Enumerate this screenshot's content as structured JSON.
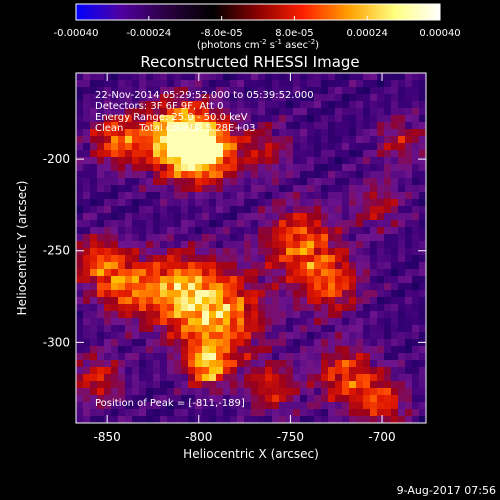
{
  "colorbar": {
    "tick_labels": [
      "-0.00040",
      "-0.00024",
      "-8.0e-05",
      "8.0e-05",
      "0.00024",
      "0.00040"
    ],
    "tick_values": [
      -0.0004,
      -0.00024,
      -8e-05,
      8e-05,
      0.00024,
      0.0004
    ],
    "min": -0.0004,
    "max": 0.0004,
    "units_text": "(photons cm",
    "units_exp1": "-2",
    "units_mid": " s",
    "units_exp2": "-1",
    "units_mid2": " asec",
    "units_exp3": "-2",
    "units_close": ")",
    "colors": [
      "#0000ff",
      "#5000a0",
      "#2a0040",
      "#000000",
      "#8a0000",
      "#ff2000",
      "#ffa000",
      "#ffff80",
      "#ffffff"
    ]
  },
  "annotations": {
    "line1": "22-Nov-2014 05:29:52.000 to 05:39:52.000",
    "line2": "Detectors: 3F 6F 9F, Att 0",
    "line3": "Energy Range: 25.0 - 50.0 keV",
    "line4": "Clean     Total counts: 5.28E+03",
    "peak_text": "Position of Peak = [-811,-189]"
  },
  "footer": {
    "date": "9-Aug-2017 07:56"
  },
  "chart_data": {
    "type": "heatmap",
    "title": "Reconstructed RHESSI Image",
    "xlabel": "Heliocentric X (arcsec)",
    "ylabel": "Heliocentric Y (arcsec)",
    "xlim": [
      -867,
      -676
    ],
    "ylim": [
      -344,
      -153
    ],
    "x_ticks": [
      -850,
      -800,
      -750,
      -700
    ],
    "x_tick_labels": [
      "-850",
      "-800",
      "-750",
      "-700"
    ],
    "y_ticks": [
      -200,
      -250,
      -300
    ],
    "y_tick_labels": [
      "-200",
      "-250",
      "-300"
    ],
    "peak_position": [
      -811,
      -189
    ],
    "bright_sources": [
      {
        "x": -811,
        "y": -189,
        "level": 1.0,
        "radius": 14
      },
      {
        "x": -795,
        "y": -196,
        "level": 0.75,
        "radius": 12
      },
      {
        "x": -845,
        "y": -190,
        "level": 0.6,
        "radius": 10
      },
      {
        "x": -790,
        "y": -285,
        "level": 0.75,
        "radius": 18
      },
      {
        "x": -812,
        "y": -270,
        "level": 0.55,
        "radius": 14
      },
      {
        "x": -840,
        "y": -270,
        "level": 0.55,
        "radius": 12
      },
      {
        "x": -855,
        "y": -255,
        "level": 0.5,
        "radius": 10
      },
      {
        "x": -745,
        "y": -245,
        "level": 0.6,
        "radius": 14
      },
      {
        "x": -728,
        "y": -268,
        "level": 0.55,
        "radius": 12
      },
      {
        "x": -795,
        "y": -313,
        "level": 0.7,
        "radius": 8
      },
      {
        "x": -760,
        "y": -325,
        "level": 0.45,
        "radius": 10
      },
      {
        "x": -720,
        "y": -318,
        "level": 0.55,
        "radius": 12
      },
      {
        "x": -700,
        "y": -333,
        "level": 0.5,
        "radius": 10
      },
      {
        "x": -855,
        "y": -320,
        "level": 0.45,
        "radius": 10
      },
      {
        "x": -763,
        "y": -195,
        "level": 0.35,
        "radius": 10
      },
      {
        "x": -702,
        "y": -225,
        "level": 0.35,
        "radius": 10
      },
      {
        "x": -690,
        "y": -190,
        "level": 0.35,
        "radius": 10
      }
    ]
  }
}
